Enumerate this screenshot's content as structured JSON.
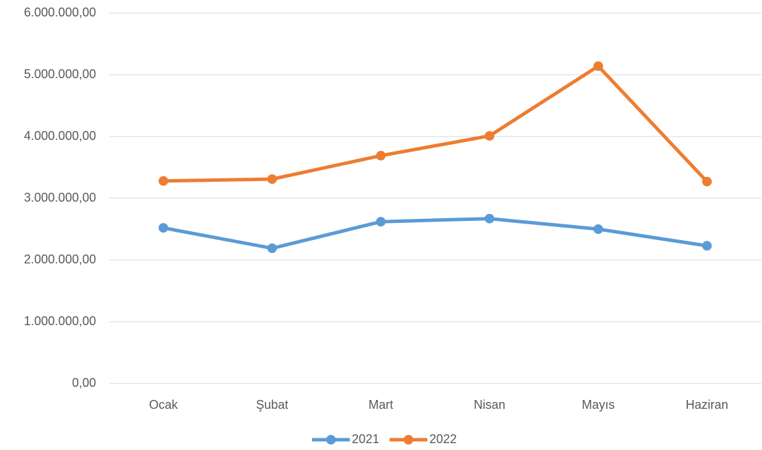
{
  "chart_data": {
    "type": "line",
    "categories": [
      "Ocak",
      "Şubat",
      "Mart",
      "Nisan",
      "Mayıs",
      "Haziran"
    ],
    "series": [
      {
        "name": "2021",
        "color": "#5b9bd5",
        "values": [
          2520000,
          2190000,
          2620000,
          2670000,
          2500000,
          2230000
        ]
      },
      {
        "name": "2022",
        "color": "#ed7d31",
        "values": [
          3280000,
          3310000,
          3690000,
          4010000,
          5140000,
          3270000
        ]
      }
    ],
    "ylim": [
      0,
      6000000
    ],
    "yticks": [
      {
        "value": 0,
        "label": "0,00"
      },
      {
        "value": 1000000,
        "label": "1.000.000,00"
      },
      {
        "value": 2000000,
        "label": "2.000.000,00"
      },
      {
        "value": 3000000,
        "label": "3.000.000,00"
      },
      {
        "value": 4000000,
        "label": "4.000.000,00"
      },
      {
        "value": 5000000,
        "label": "5.000.000,00"
      },
      {
        "value": 6000000,
        "label": "6.000.000,00"
      }
    ],
    "grid": true,
    "legend": "bottom"
  }
}
